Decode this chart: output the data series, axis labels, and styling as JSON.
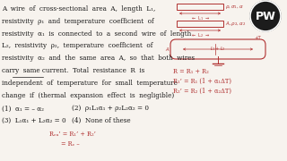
{
  "bg_color": "#f7f3ee",
  "text_color": "#1a1a1a",
  "red_color": "#b03030",
  "main_text_lines": [
    "A  wire  of  cross-sectional  area  A,  length  L₁,",
    "resistivity  ρ₁  and  temperature  coefficient  of",
    "resistivity  α₁  is  connected  to  a  second  wire  of  length",
    "L₂,  resistivity  ρ₂,  temperature  coefficient  of",
    "resistivity  α₂  and  the  same  area  A,  so  that  both  wires",
    "carry  same current.  Total  resistance  R  is",
    "independent  of  temperature  for  small  temperature",
    "change  if  (thermal  expansion  effect  is  negligible)"
  ],
  "option1": "(1)  α₁ = – α₂",
  "option2": "(2)  ρ₁L₁α₁ + ρ₂L₂α₂ = 0",
  "option3": "(3)  L₁α₁ + L₂α₂ = 0",
  "option4": "(4)  None of these",
  "sol1": "Rₑᵤ’ = R₁’ + R₂’",
  "sol2": "= Rₑ –",
  "eq1": "R = R₁ + R₂",
  "eq2": "R₁’ = R₁ (1 + α₁ΔT)",
  "eq3": "R₂’ = R₂ (1 + α₂ΔT)",
  "wire1_label": "ρ, σ₁, α",
  "wire2_label": "A, ρ₂, α₂",
  "combined_label": "L₁ + L₂",
  "pw_text": "PW",
  "fs": 5.2,
  "fs_opt": 5.2,
  "fs_red": 4.8,
  "fs_diag": 4.0
}
